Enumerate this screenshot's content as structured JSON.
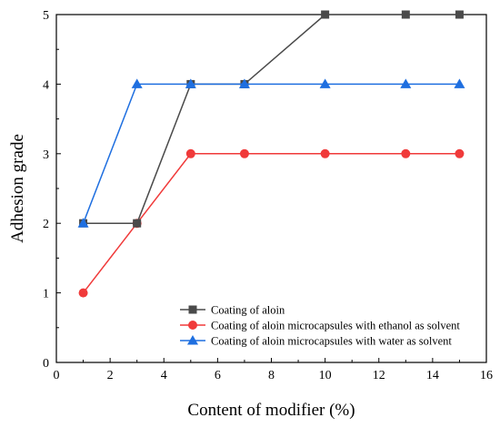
{
  "chart_data": {
    "type": "line",
    "title": "",
    "xlabel": "Content of modifier (%)",
    "ylabel": "Adhesion grade",
    "xlim": [
      0,
      16
    ],
    "ylim": [
      0,
      5
    ],
    "xticks": [
      0,
      2,
      4,
      6,
      8,
      10,
      12,
      14,
      16
    ],
    "yticks": [
      0,
      1,
      2,
      3,
      4,
      5
    ],
    "grid": false,
    "legend_position": "bottom-right",
    "series": [
      {
        "name": "Coating of aloin",
        "color": "#4a4a4a",
        "marker": "square",
        "x": [
          1,
          3,
          5,
          7,
          10,
          13,
          15
        ],
        "y": [
          2,
          2,
          4,
          4,
          5,
          5,
          5
        ]
      },
      {
        "name": "Coating of aloin microcapsules with ethanol as solvent",
        "color": "#f03a3a",
        "marker": "circle",
        "x": [
          1,
          3,
          5,
          7,
          10,
          13,
          15
        ],
        "y": [
          1,
          2,
          3,
          3,
          3,
          3,
          3
        ]
      },
      {
        "name": "Coating of aloin microcapsules with water as solvent",
        "color": "#1f6fe0",
        "marker": "triangle",
        "x": [
          1,
          3,
          5,
          7,
          10,
          13,
          15
        ],
        "y": [
          2,
          4,
          4,
          4,
          4,
          4,
          4
        ]
      }
    ]
  }
}
